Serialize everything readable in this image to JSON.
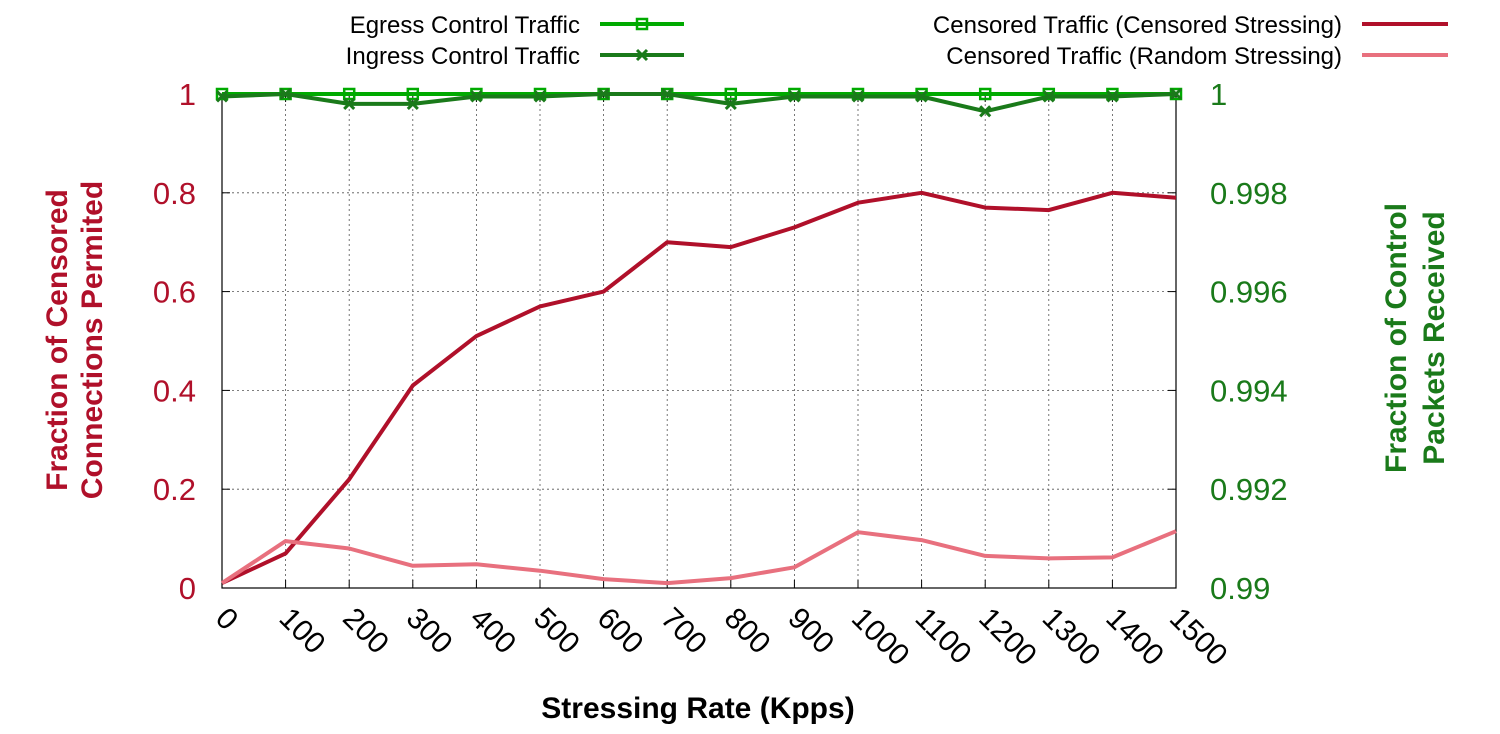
{
  "chart_data": {
    "type": "line",
    "xlabel": "Stressing Rate (Kpps)",
    "ylabel_left": [
      "Fraction of Censored",
      "Connections Permited"
    ],
    "ylabel_right": [
      "Fraction of Control",
      "Packets Received"
    ],
    "grid": true,
    "x": [
      0,
      100,
      200,
      300,
      400,
      500,
      600,
      700,
      800,
      900,
      1000,
      1100,
      1200,
      1300,
      1400,
      1500
    ],
    "xlim": [
      0,
      1500
    ],
    "ylim_left": [
      0,
      1
    ],
    "ylim_right": [
      0.99,
      1
    ],
    "x_ticks": [
      "0",
      "100",
      "200",
      "300",
      "400",
      "500",
      "600",
      "700",
      "800",
      "900",
      "1000",
      "1100",
      "1200",
      "1300",
      "1400",
      "1500"
    ],
    "y_ticks_left": [
      {
        "value": 0,
        "label": "0"
      },
      {
        "value": 0.2,
        "label": "0.2"
      },
      {
        "value": 0.4,
        "label": "0.4"
      },
      {
        "value": 0.6,
        "label": "0.6"
      },
      {
        "value": 0.8,
        "label": "0.8"
      },
      {
        "value": 1,
        "label": "1"
      }
    ],
    "y_ticks_right": [
      {
        "value": 0.99,
        "label": "0.99"
      },
      {
        "value": 0.992,
        "label": "0.992"
      },
      {
        "value": 0.994,
        "label": "0.994"
      },
      {
        "value": 0.996,
        "label": "0.996"
      },
      {
        "value": 0.998,
        "label": "0.998"
      },
      {
        "value": 1,
        "label": "1"
      }
    ],
    "series": [
      {
        "name": "Egress Control Traffic",
        "axis": "right",
        "color": "#00aa00",
        "marker": "square",
        "legend_position": "top-left",
        "values": [
          1,
          1,
          1,
          1,
          1,
          1,
          1,
          1,
          1,
          1,
          1,
          1,
          1,
          1,
          1,
          1
        ]
      },
      {
        "name": "Ingress Control Traffic",
        "axis": "right",
        "color": "#1a7a1a",
        "marker": "x",
        "legend_position": "top-left",
        "values": [
          0.99995,
          1,
          0.9998,
          0.9998,
          0.99995,
          0.99995,
          1,
          1,
          0.9998,
          0.99995,
          0.99995,
          0.99995,
          0.99965,
          0.99995,
          0.99995,
          1
        ]
      },
      {
        "name": "Censored Traffic (Censored Stressing)",
        "axis": "left",
        "color": "#b0102a",
        "marker": "none",
        "legend_position": "top-right",
        "values": [
          0.01,
          0.07,
          0.22,
          0.41,
          0.51,
          0.57,
          0.6,
          0.7,
          0.69,
          0.73,
          0.78,
          0.8,
          0.77,
          0.765,
          0.8,
          0.79
        ]
      },
      {
        "name": "Censored Traffic (Random Stressing)",
        "axis": "left",
        "color": "#e8707e",
        "marker": "none",
        "legend_position": "top-right",
        "values": [
          0.01,
          0.095,
          0.08,
          0.045,
          0.048,
          0.035,
          0.018,
          0.01,
          0.02,
          0.042,
          0.113,
          0.097,
          0.065,
          0.06,
          0.062,
          0.115
        ]
      }
    ]
  }
}
